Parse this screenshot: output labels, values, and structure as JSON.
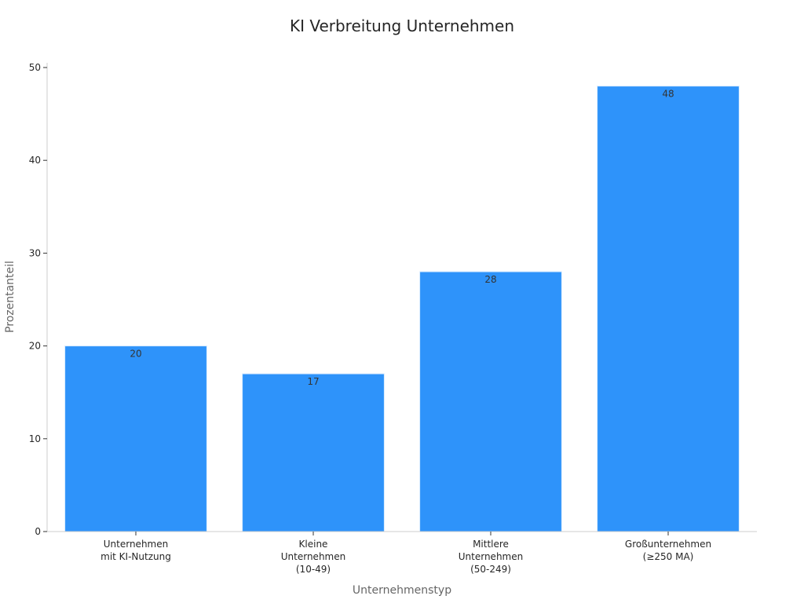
{
  "colors": {
    "bar": "#2E93FA",
    "bar_edge": "#d9ecff"
  },
  "chart_data": {
    "type": "bar",
    "title": "KI Verbreitung Unternehmen",
    "xlabel": "Unternehmenstyp",
    "ylabel": "Prozentanteil",
    "categories": [
      [
        "Unternehmen",
        "mit KI-Nutzung"
      ],
      [
        "Kleine",
        "Unternehmen",
        "(10-49)"
      ],
      [
        "Mittlere",
        "Unternehmen",
        "(50-249)"
      ],
      [
        "Großunternehmen",
        "(≥250 MA)"
      ]
    ],
    "values": [
      20,
      17,
      28,
      48
    ],
    "data_labels": [
      "20",
      "17",
      "28",
      "48"
    ],
    "ylim": [
      0,
      50
    ],
    "yticks": [
      0,
      10,
      20,
      30,
      40,
      50
    ],
    "grid": false,
    "legend": "none"
  }
}
